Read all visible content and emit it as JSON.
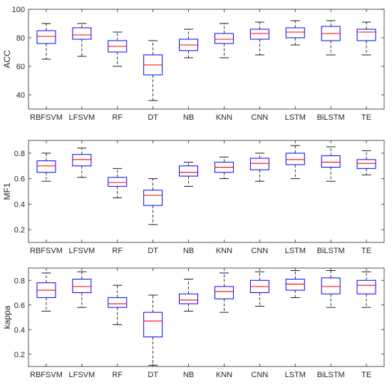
{
  "chart_data": [
    {
      "type": "box",
      "ylabel": "ACC",
      "ylim": [
        30,
        100
      ],
      "yticks": [
        40,
        60,
        80,
        100
      ],
      "categories": [
        "RBFSVM",
        "LFSVM",
        "RF",
        "DT",
        "NB",
        "KNN",
        "CNN",
        "LSTM",
        "BiLSTM",
        "TE"
      ],
      "boxes": [
        {
          "whisker_low": 65,
          "q1": 76,
          "median": 81,
          "q3": 85,
          "whisker_high": 90
        },
        {
          "whisker_low": 67,
          "q1": 79,
          "median": 82,
          "q3": 87,
          "whisker_high": 90
        },
        {
          "whisker_low": 60,
          "q1": 70,
          "median": 74,
          "q3": 78,
          "whisker_high": 84
        },
        {
          "whisker_low": 36,
          "q1": 54,
          "median": 61,
          "q3": 68,
          "whisker_high": 78
        },
        {
          "whisker_low": 66,
          "q1": 71,
          "median": 75,
          "q3": 79,
          "whisker_high": 86
        },
        {
          "whisker_low": 66,
          "q1": 76,
          "median": 79,
          "q3": 83,
          "whisker_high": 90
        },
        {
          "whisker_low": 68,
          "q1": 79,
          "median": 83,
          "q3": 86,
          "whisker_high": 91
        },
        {
          "whisker_low": 75,
          "q1": 80,
          "median": 84,
          "q3": 87,
          "whisker_high": 92
        },
        {
          "whisker_low": 68,
          "q1": 78,
          "median": 83,
          "q3": 88,
          "whisker_high": 92
        },
        {
          "whisker_low": 68,
          "q1": 78,
          "median": 84,
          "q3": 86,
          "whisker_high": 91
        }
      ]
    },
    {
      "type": "box",
      "ylabel": "MF1",
      "ylim": [
        0.1,
        0.9
      ],
      "yticks": [
        0.2,
        0.4,
        0.6,
        0.8
      ],
      "categories": [
        "RBFSVM",
        "LFSVM",
        "RF",
        "DT",
        "NB",
        "KNN",
        "CNN",
        "LSTM",
        "BiLSTM",
        "TE"
      ],
      "boxes": [
        {
          "whisker_low": 0.58,
          "q1": 0.65,
          "median": 0.7,
          "q3": 0.74,
          "whisker_high": 0.8
        },
        {
          "whisker_low": 0.61,
          "q1": 0.7,
          "median": 0.75,
          "q3": 0.79,
          "whisker_high": 0.84
        },
        {
          "whisker_low": 0.45,
          "q1": 0.54,
          "median": 0.57,
          "q3": 0.61,
          "whisker_high": 0.68
        },
        {
          "whisker_low": 0.24,
          "q1": 0.39,
          "median": 0.47,
          "q3": 0.51,
          "whisker_high": 0.6
        },
        {
          "whisker_low": 0.54,
          "q1": 0.62,
          "median": 0.65,
          "q3": 0.7,
          "whisker_high": 0.73
        },
        {
          "whisker_low": 0.6,
          "q1": 0.65,
          "median": 0.69,
          "q3": 0.73,
          "whisker_high": 0.77
        },
        {
          "whisker_low": 0.58,
          "q1": 0.67,
          "median": 0.72,
          "q3": 0.76,
          "whisker_high": 0.8
        },
        {
          "whisker_low": 0.6,
          "q1": 0.71,
          "median": 0.75,
          "q3": 0.8,
          "whisker_high": 0.86
        },
        {
          "whisker_low": 0.58,
          "q1": 0.69,
          "median": 0.73,
          "q3": 0.78,
          "whisker_high": 0.85
        },
        {
          "whisker_low": 0.63,
          "q1": 0.68,
          "median": 0.72,
          "q3": 0.75,
          "whisker_high": 0.82
        }
      ]
    },
    {
      "type": "box",
      "ylabel": "kappa",
      "ylim": [
        0.1,
        0.9
      ],
      "yticks": [
        0.2,
        0.4,
        0.6,
        0.8
      ],
      "categories": [
        "RBFSVM",
        "LFSVM",
        "RF",
        "DT",
        "NB",
        "KNN",
        "CNN",
        "LSTM",
        "BiLSTM",
        "TE"
      ],
      "boxes": [
        {
          "whisker_low": 0.55,
          "q1": 0.66,
          "median": 0.72,
          "q3": 0.78,
          "whisker_high": 0.86
        },
        {
          "whisker_low": 0.58,
          "q1": 0.7,
          "median": 0.75,
          "q3": 0.81,
          "whisker_high": 0.87
        },
        {
          "whisker_low": 0.44,
          "q1": 0.58,
          "median": 0.61,
          "q3": 0.66,
          "whisker_high": 0.76
        },
        {
          "whisker_low": 0.11,
          "q1": 0.34,
          "median": 0.47,
          "q3": 0.54,
          "whisker_high": 0.68
        },
        {
          "whisker_low": 0.55,
          "q1": 0.61,
          "median": 0.64,
          "q3": 0.69,
          "whisker_high": 0.81
        },
        {
          "whisker_low": 0.54,
          "q1": 0.65,
          "median": 0.71,
          "q3": 0.75,
          "whisker_high": 0.86
        },
        {
          "whisker_low": 0.59,
          "q1": 0.7,
          "median": 0.75,
          "q3": 0.8,
          "whisker_high": 0.87
        },
        {
          "whisker_low": 0.66,
          "q1": 0.72,
          "median": 0.77,
          "q3": 0.81,
          "whisker_high": 0.88
        },
        {
          "whisker_low": 0.58,
          "q1": 0.69,
          "median": 0.75,
          "q3": 0.82,
          "whisker_high": 0.88
        },
        {
          "whisker_low": 0.58,
          "q1": 0.69,
          "median": 0.76,
          "q3": 0.8,
          "whisker_high": 0.87
        }
      ]
    }
  ],
  "colors": {
    "box": "#0000ff",
    "median": "#ff0000",
    "whisker": "#000000",
    "axis": "#262626"
  }
}
